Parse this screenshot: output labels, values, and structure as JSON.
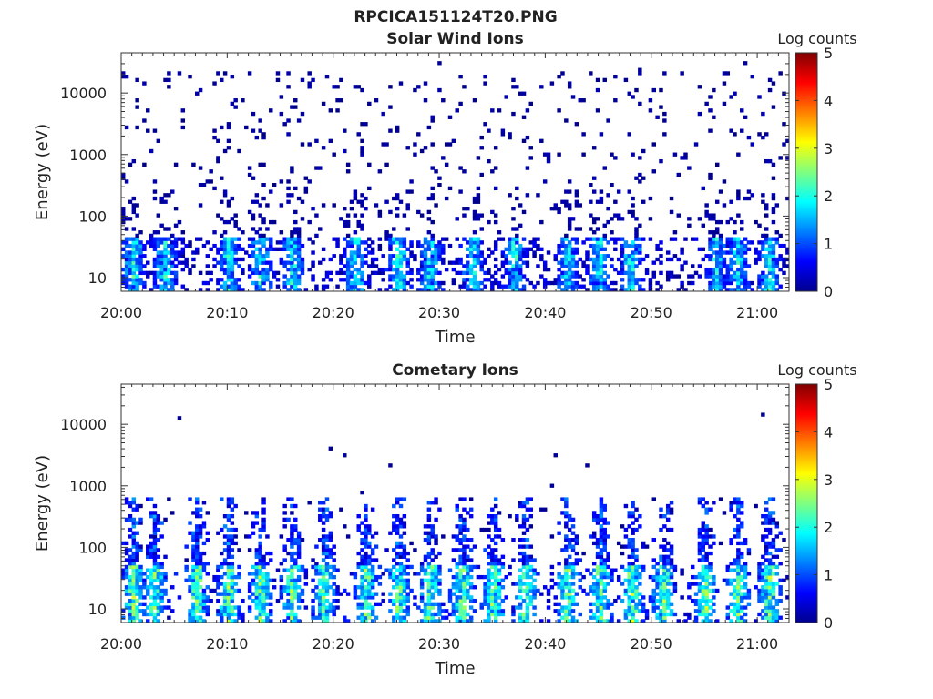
{
  "figure_title": "RPCICA151124T20.PNG",
  "chart_data": [
    {
      "type": "heatmap",
      "title": "Solar Wind Ions",
      "xlabel": "Time",
      "ylabel": "Energy (eV)",
      "xticks": [
        "20:00",
        "20:10",
        "20:20",
        "20:30",
        "20:40",
        "20:50",
        "21:00"
      ],
      "xlim": [
        "20:00",
        "21:03"
      ],
      "yscale": "log",
      "yticks": [
        10,
        100,
        1000,
        10000
      ],
      "yticklabels": [
        "10",
        "100",
        "1000",
        "10000"
      ],
      "ylim": [
        6,
        45000
      ],
      "colorbar": {
        "label": "Log counts",
        "range": [
          0,
          5
        ],
        "ticks": [
          "0",
          "1",
          "2",
          "3",
          "4",
          "5"
        ],
        "colormap": "jet"
      },
      "bright_bursts_minutes": [
        1,
        4,
        10,
        13,
        16,
        22,
        26,
        29,
        33,
        37,
        42,
        45,
        48,
        56,
        58,
        61
      ],
      "description_levels": "Low-energy (6–45 eV) intermittent bursts up to ~2.5 log counts; sparse 0–0.5 log counts from 100 eV to 40 keV"
    },
    {
      "type": "heatmap",
      "title": "Cometary Ions",
      "xlabel": "Time",
      "ylabel": "Energy (eV)",
      "xticks": [
        "20:00",
        "20:10",
        "20:20",
        "20:30",
        "20:40",
        "20:50",
        "21:00"
      ],
      "xlim": [
        "20:00",
        "21:03"
      ],
      "yscale": "log",
      "yticks": [
        10,
        100,
        1000,
        10000
      ],
      "yticklabels": [
        "10",
        "100",
        "1000",
        "10000"
      ],
      "ylim": [
        6,
        45000
      ],
      "colorbar": {
        "label": "Log counts",
        "range": [
          0,
          5
        ],
        "ticks": [
          "0",
          "1",
          "2",
          "3",
          "4",
          "5"
        ],
        "colormap": "jet"
      },
      "bright_bursts_minutes": [
        1,
        3,
        7,
        10,
        13,
        16,
        19,
        23,
        26,
        29,
        32,
        35,
        38,
        42,
        45,
        48,
        51,
        55,
        58,
        61
      ],
      "description_levels": "Bursts of 0.5–3.3 log counts concentrated 6–50 eV, extending to ~500 eV; isolated counts up to ~14 keV"
    }
  ]
}
